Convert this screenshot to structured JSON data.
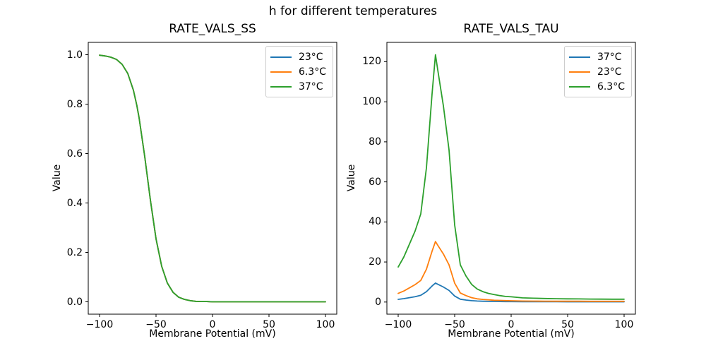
{
  "figure": {
    "title": "h for different temperatures",
    "background": "#ffffff",
    "palette": {
      "blue": "#1f77b4",
      "orange": "#ff7f0e",
      "green": "#2ca02c"
    }
  },
  "chart_data": [
    {
      "type": "line",
      "title": "RATE_VALS_SS",
      "xlabel": "Membrane Potential (mV)",
      "ylabel": "Value",
      "grid": false,
      "legend_position": "upper right",
      "xlim": [
        -110,
        110
      ],
      "ylim": [
        -0.05,
        1.05
      ],
      "x_ticks": {
        "values": [
          -100,
          -50,
          0,
          50,
          100
        ],
        "labels": [
          "−100",
          "−50",
          "0",
          "50",
          "100"
        ]
      },
      "y_ticks": {
        "values": [
          0.0,
          0.2,
          0.4,
          0.6,
          0.8,
          1.0
        ],
        "labels": [
          "0.0",
          "0.2",
          "0.4",
          "0.6",
          "0.8",
          "1.0"
        ]
      },
      "note": "Sigmoid steady-state curve; all three temperature curves overlap exactly, green (37°C, plotted last) is visible on top. Midpoint ≈ −57 mV.",
      "x": [
        -100,
        -95,
        -90,
        -85,
        -80,
        -75,
        -70,
        -67,
        -65,
        -60,
        -55,
        -50,
        -45,
        -40,
        -35,
        -30,
        -25,
        -20,
        -15,
        -10,
        -5,
        0,
        10,
        20,
        30,
        40,
        50,
        60,
        70,
        80,
        90,
        100
      ],
      "series": [
        {
          "name": "23°C",
          "color": "#1f77b4",
          "values": [
            0.998,
            0.995,
            0.99,
            0.981,
            0.961,
            0.924,
            0.856,
            0.795,
            0.745,
            0.588,
            0.412,
            0.255,
            0.144,
            0.076,
            0.039,
            0.019,
            0.01,
            0.005,
            0.002,
            0.001,
            0.001,
            0.0,
            0.0,
            0.0,
            0.0,
            0.0,
            0.0,
            0.0,
            0.0,
            0.0,
            0.0,
            0.0
          ]
        },
        {
          "name": "6.3°C",
          "color": "#ff7f0e",
          "values": [
            0.998,
            0.995,
            0.99,
            0.981,
            0.961,
            0.924,
            0.856,
            0.795,
            0.745,
            0.588,
            0.412,
            0.255,
            0.144,
            0.076,
            0.039,
            0.019,
            0.01,
            0.005,
            0.002,
            0.001,
            0.001,
            0.0,
            0.0,
            0.0,
            0.0,
            0.0,
            0.0,
            0.0,
            0.0,
            0.0,
            0.0,
            0.0
          ]
        },
        {
          "name": "37°C",
          "color": "#2ca02c",
          "values": [
            0.998,
            0.995,
            0.99,
            0.981,
            0.961,
            0.924,
            0.856,
            0.795,
            0.745,
            0.588,
            0.412,
            0.255,
            0.144,
            0.076,
            0.039,
            0.019,
            0.01,
            0.005,
            0.002,
            0.001,
            0.001,
            0.0,
            0.0,
            0.0,
            0.0,
            0.0,
            0.0,
            0.0,
            0.0,
            0.0,
            0.0,
            0.0
          ]
        }
      ]
    },
    {
      "type": "line",
      "title": "RATE_VALS_TAU",
      "xlabel": "Membrane Potential (mV)",
      "ylabel": "Value",
      "grid": false,
      "legend_position": "upper right",
      "xlim": [
        -110,
        110
      ],
      "ylim": [
        -6.06,
        129.67
      ],
      "x_ticks": {
        "values": [
          -100,
          -50,
          0,
          50,
          100
        ],
        "labels": [
          "−100",
          "−50",
          "0",
          "50",
          "100"
        ]
      },
      "y_ticks": {
        "values": [
          0,
          20,
          40,
          60,
          80,
          100,
          120
        ],
        "labels": [
          "0",
          "20",
          "40",
          "60",
          "80",
          "100",
          "120"
        ]
      },
      "note": "Time-constant curves peaking near −67 mV: green (6.3°C) peak ≈ 123.5, orange (23°C) peak ≈ 30, blue (37°C) peak ≈ 9.5.",
      "x": [
        -100,
        -95,
        -90,
        -85,
        -80,
        -75,
        -70,
        -67,
        -65,
        -60,
        -55,
        -50,
        -45,
        -40,
        -35,
        -30,
        -25,
        -20,
        -15,
        -10,
        -5,
        0,
        10,
        20,
        30,
        40,
        50,
        60,
        70,
        80,
        90,
        100
      ],
      "series": [
        {
          "name": "37°C",
          "color": "#1f77b4",
          "values": [
            1.35,
            1.7,
            2.2,
            2.7,
            3.4,
            5.2,
            8.0,
            9.5,
            8.9,
            7.5,
            5.8,
            3.0,
            1.4,
            1.0,
            0.68,
            0.5,
            0.4,
            0.33,
            0.28,
            0.25,
            0.22,
            0.2,
            0.16,
            0.15,
            0.13,
            0.13,
            0.12,
            0.12,
            0.12,
            0.11,
            0.11,
            0.11
          ]
        },
        {
          "name": "23°C",
          "color": "#ff7f0e",
          "values": [
            4.3,
            5.5,
            7.1,
            8.7,
            10.8,
            16.4,
            25.4,
            30.2,
            28.4,
            24.0,
            18.6,
            9.4,
            4.5,
            3.2,
            2.2,
            1.6,
            1.3,
            1.1,
            0.9,
            0.8,
            0.7,
            0.64,
            0.51,
            0.46,
            0.43,
            0.4,
            0.39,
            0.38,
            0.37,
            0.35,
            0.34,
            0.34
          ]
        },
        {
          "name": "6.3°C",
          "color": "#2ca02c",
          "values": [
            17.5,
            22.5,
            29.0,
            35.5,
            44.0,
            67.0,
            104.0,
            123.5,
            116.0,
            98.0,
            76.0,
            38.5,
            18.6,
            13.0,
            8.8,
            6.5,
            5.2,
            4.3,
            3.7,
            3.2,
            2.8,
            2.6,
            2.1,
            1.9,
            1.75,
            1.65,
            1.6,
            1.55,
            1.5,
            1.45,
            1.4,
            1.4
          ]
        }
      ]
    }
  ]
}
